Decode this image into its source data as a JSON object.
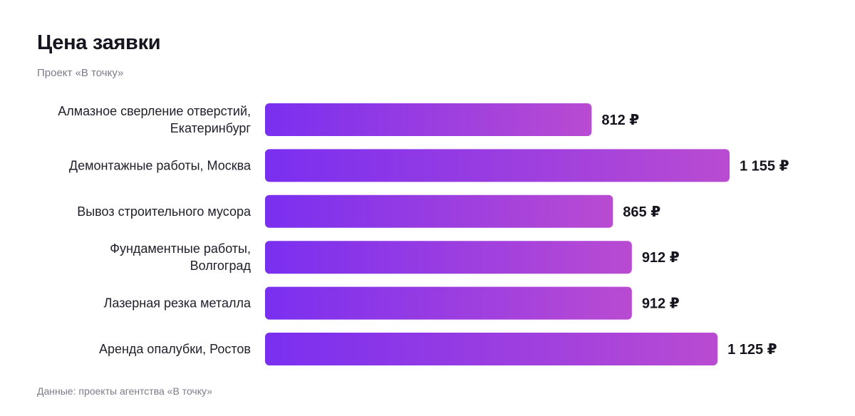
{
  "header": {
    "title": "Цена заявки",
    "subtitle": "Проект «В точку»"
  },
  "footer": {
    "source": "Данные: проекты агентства «В точку»"
  },
  "colors": {
    "bar_start": "#7a2ff0",
    "bar_end": "#b94bd2"
  },
  "chart_data": {
    "type": "bar",
    "orientation": "horizontal",
    "title": "Цена заявки",
    "subtitle": "Проект «В точку»",
    "xlabel": "",
    "ylabel": "",
    "unit": "₽",
    "xlim": [
      0,
      1300
    ],
    "grid": false,
    "categories": [
      [
        "Алмазное сверление отверстий,",
        "Екатеринбург"
      ],
      [
        "Демонтажные работы, Москва"
      ],
      [
        "Вывоз строительного мусора"
      ],
      [
        "Фундаментные работы,",
        "Волгоград"
      ],
      [
        "Лазерная резка металла"
      ],
      [
        "Аренда опалубки, Ростов"
      ]
    ],
    "values": [
      812,
      1155,
      865,
      912,
      912,
      1125
    ],
    "value_labels": [
      "812",
      "1 155",
      "865",
      "912",
      "912",
      "1 125"
    ]
  }
}
